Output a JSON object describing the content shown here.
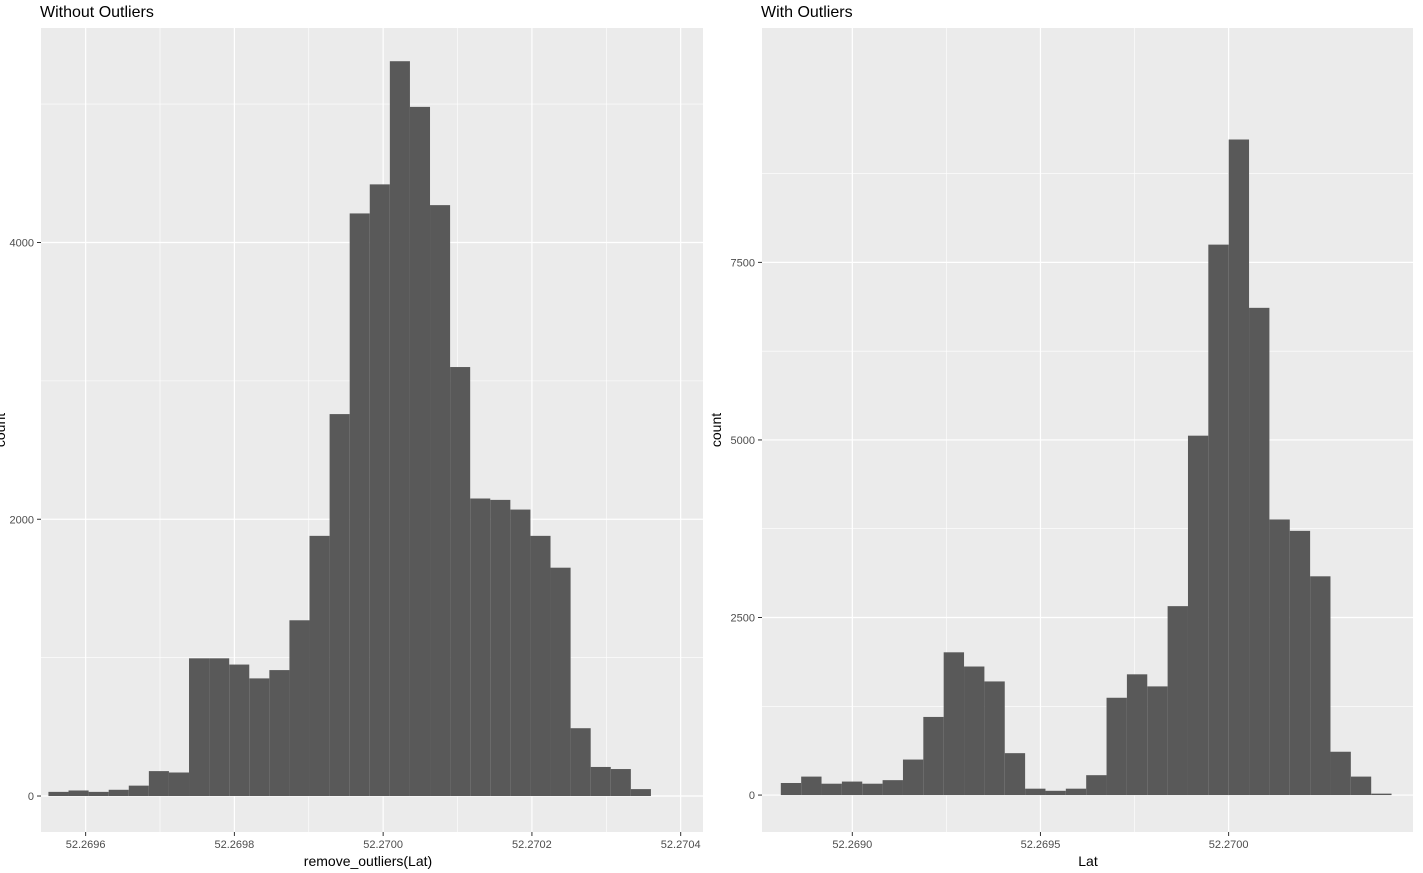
{
  "chart_data": [
    {
      "type": "bar",
      "title": "Without Outliers",
      "xlabel": "remove_outliers(Lat)",
      "ylabel": "count",
      "x_ticks": [
        52.2696,
        52.2698,
        52.27,
        52.2702,
        52.2704
      ],
      "x_tick_labels": [
        "52.2696",
        "52.2698",
        "52.2700",
        "52.2702",
        "52.2704"
      ],
      "y_ticks": [
        0,
        2000,
        4000
      ],
      "y_tick_labels": [
        "0",
        "2000",
        "4000"
      ],
      "xlim": [
        52.26954,
        52.27043
      ],
      "ylim": [
        -260,
        5550
      ],
      "bin_start": 52.26955,
      "bin_width": 2.7e-05,
      "values": [
        30,
        40,
        30,
        45,
        75,
        180,
        170,
        995,
        995,
        950,
        850,
        910,
        1270,
        1880,
        2760,
        4210,
        4420,
        5310,
        4980,
        4270,
        3100,
        2150,
        2140,
        2070,
        1880,
        1650,
        490,
        210,
        195,
        50
      ],
      "grid": true,
      "bar_color": "#595959",
      "panel_color": "#ebebeb",
      "grid_color": "#ffffff"
    },
    {
      "type": "bar",
      "title": "With Outliers",
      "xlabel": "Lat",
      "ylabel": "count",
      "x_ticks": [
        52.269,
        52.2695,
        52.27
      ],
      "x_tick_labels": [
        "52.2690",
        "52.2695",
        "52.2700"
      ],
      "y_ticks": [
        0,
        2500,
        5000,
        7500
      ],
      "y_tick_labels": [
        "0",
        "2500",
        "5000",
        "7500"
      ],
      "xlim": [
        52.26876,
        52.27049
      ],
      "ylim": [
        -520,
        10800
      ],
      "bin_start": 52.26881,
      "bin_width": 5.41e-05,
      "values": [
        170,
        260,
        160,
        190,
        160,
        210,
        500,
        1100,
        2010,
        1810,
        1600,
        590,
        90,
        60,
        90,
        280,
        1370,
        1700,
        1530,
        2660,
        5060,
        7750,
        9230,
        6860,
        3880,
        3720,
        3080,
        610,
        260,
        20
      ],
      "grid": true,
      "bar_color": "#595959",
      "panel_color": "#ebebeb",
      "grid_color": "#ffffff"
    }
  ]
}
